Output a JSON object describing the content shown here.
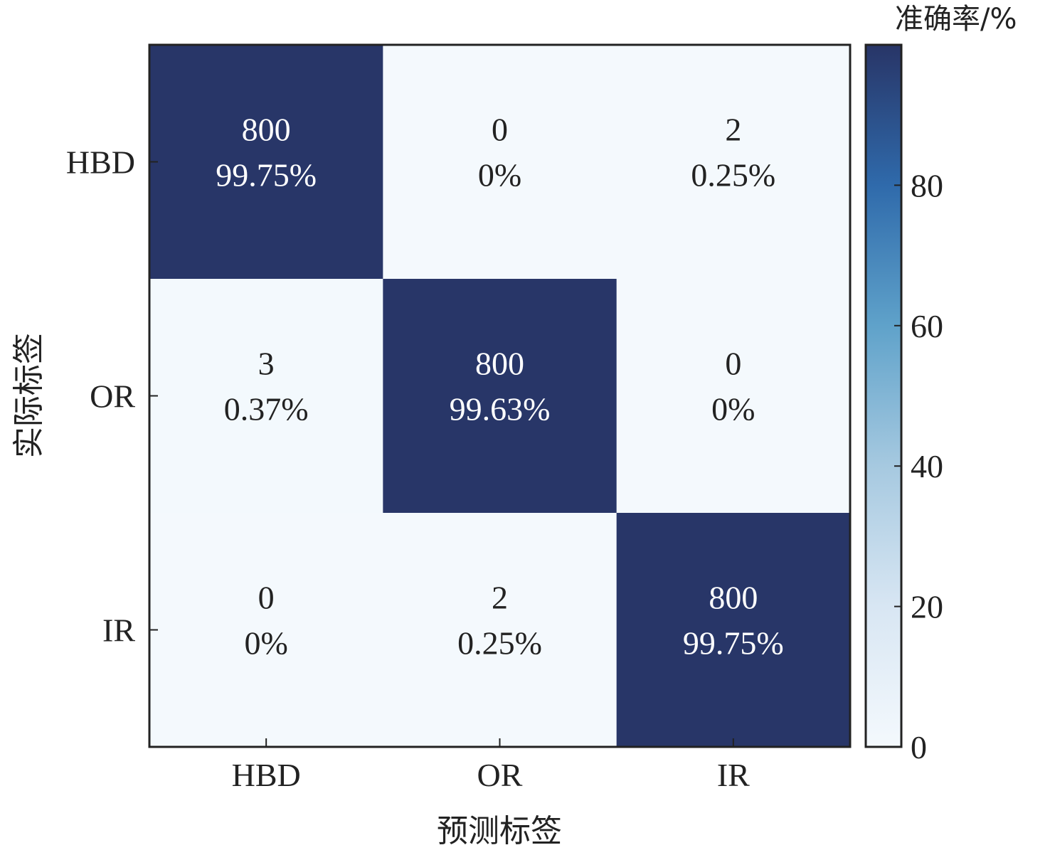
{
  "chart_data": {
    "type": "heatmap",
    "title": "",
    "xlabel": "预测标签",
    "ylabel": "实际标签",
    "x_categories": [
      "HBD",
      "OR",
      "IR"
    ],
    "y_categories": [
      "HBD",
      "OR",
      "IR"
    ],
    "counts": [
      [
        800,
        0,
        2
      ],
      [
        3,
        800,
        0
      ],
      [
        0,
        2,
        800
      ]
    ],
    "percent_labels": [
      [
        "99.75%",
        "0%",
        "0.25%"
      ],
      [
        "0.37%",
        "99.63%",
        "0%"
      ],
      [
        "0%",
        "0.25%",
        "99.75%"
      ]
    ],
    "values": [
      [
        99.75,
        0,
        0.25
      ],
      [
        0.37,
        99.63,
        0
      ],
      [
        0,
        0.25,
        99.75
      ]
    ],
    "colorbar": {
      "title": "准确率/%",
      "range": [
        0,
        100
      ],
      "ticks": [
        0,
        20,
        40,
        60,
        80
      ],
      "colors": [
        "#f4f9fd",
        "#d8e6f3",
        "#a6c9e0",
        "#5fa2ca",
        "#2f6aab",
        "#283567"
      ]
    },
    "cell_text_colors": {
      "dark": "#ffffff",
      "light": "#222222"
    }
  }
}
